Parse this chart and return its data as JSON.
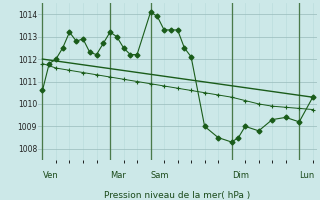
{
  "background_color": "#cce8e8",
  "grid_color_major": "#99bbbb",
  "grid_color_minor": "#bbdddd",
  "line_color": "#1a5c1a",
  "title": "Pression niveau de la mer( hPa )",
  "ylim": [
    1007.5,
    1014.5
  ],
  "yticks": [
    1008,
    1009,
    1010,
    1011,
    1012,
    1013,
    1014
  ],
  "day_labels": [
    "Ven",
    "Mar",
    "Sam",
    "Dim",
    "Lun"
  ],
  "day_x": [
    0,
    5,
    8,
    14,
    19
  ],
  "vline_x": [
    0,
    5,
    8,
    14,
    19
  ],
  "num_points": 21,
  "xlim": [
    -0.3,
    20.3
  ],
  "series1_x": [
    0,
    0.5,
    1,
    1.5,
    2,
    2.5,
    3,
    3.5,
    4,
    4.5,
    5,
    5.5,
    6,
    6.5,
    7,
    8,
    8.5,
    9,
    9.5,
    10,
    10.5,
    11,
    12,
    13,
    14,
    14.5,
    15,
    16,
    17,
    18,
    19,
    20
  ],
  "series1_y": [
    1010.6,
    1011.8,
    1012.0,
    1012.5,
    1013.2,
    1012.8,
    1012.9,
    1012.3,
    1012.2,
    1012.7,
    1013.2,
    1013.0,
    1012.5,
    1012.2,
    1012.2,
    1014.1,
    1013.9,
    1013.3,
    1013.3,
    1013.3,
    1012.5,
    1012.1,
    1009.0,
    1008.5,
    1008.3,
    1008.5,
    1009.0,
    1008.8,
    1009.3,
    1009.4,
    1009.2,
    1010.3
  ],
  "series2_x": [
    0,
    1,
    2,
    3,
    4,
    5,
    6,
    7,
    8,
    9,
    10,
    11,
    12,
    13,
    14,
    15,
    16,
    17,
    18,
    19,
    20
  ],
  "series2_y": [
    1011.8,
    1011.6,
    1011.5,
    1011.4,
    1011.3,
    1011.2,
    1011.1,
    1011.0,
    1010.9,
    1010.8,
    1010.7,
    1010.6,
    1010.5,
    1010.4,
    1010.3,
    1010.15,
    1010.0,
    1009.9,
    1009.85,
    1009.8,
    1009.75
  ],
  "series3_x": [
    0,
    20
  ],
  "series3_y": [
    1012.0,
    1010.3
  ]
}
